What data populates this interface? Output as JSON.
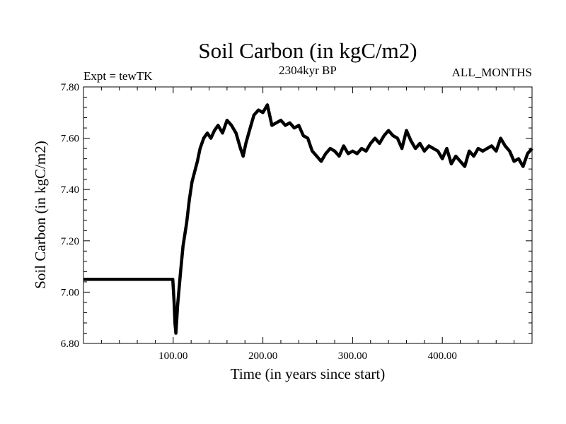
{
  "chart_data": {
    "type": "line",
    "title": "Soil Carbon (in kgC/m2)",
    "subtitle": "2304kyr BP",
    "left_annotation": "Expt = tewTK",
    "right_annotation": "ALL_MONTHS",
    "xlabel": "Time (in years since start)",
    "ylabel": "Soil Carbon (in kgC/m2)",
    "xlim": [
      0,
      500
    ],
    "ylim": [
      6.8,
      7.8
    ],
    "x_ticks": [
      {
        "value": 100,
        "label": "100.00"
      },
      {
        "value": 200,
        "label": "200.00"
      },
      {
        "value": 300,
        "label": "300.00"
      },
      {
        "value": 400,
        "label": "400.00"
      }
    ],
    "y_ticks": [
      {
        "value": 6.8,
        "label": "6.80"
      },
      {
        "value": 7.0,
        "label": "7.00"
      },
      {
        "value": 7.2,
        "label": "7.20"
      },
      {
        "value": 7.4,
        "label": "7.40"
      },
      {
        "value": 7.6,
        "label": "7.60"
      },
      {
        "value": 7.8,
        "label": "7.80"
      }
    ],
    "grid": false,
    "series": [
      {
        "name": "Soil Carbon",
        "color": "#000000",
        "x": [
          0,
          50,
          99.5,
          101,
          102,
          103,
          105,
          108,
          111,
          115,
          118,
          121,
          124,
          127,
          130,
          134,
          138,
          142,
          146,
          150,
          155,
          160,
          165,
          170,
          175,
          178,
          181,
          185,
          190,
          195,
          200,
          205,
          210,
          215,
          220,
          225,
          230,
          235,
          240,
          245,
          250,
          255,
          260,
          265,
          270,
          275,
          280,
          285,
          290,
          295,
          300,
          305,
          310,
          315,
          320,
          325,
          330,
          335,
          340,
          345,
          350,
          355,
          360,
          365,
          370,
          375,
          380,
          385,
          390,
          395,
          400,
          405,
          410,
          415,
          420,
          425,
          430,
          435,
          440,
          445,
          450,
          455,
          460,
          465,
          470,
          475,
          480,
          485,
          490,
          495,
          500
        ],
        "values": [
          7.05,
          7.05,
          7.05,
          6.96,
          6.88,
          6.84,
          6.95,
          7.07,
          7.18,
          7.27,
          7.36,
          7.43,
          7.47,
          7.51,
          7.56,
          7.6,
          7.62,
          7.6,
          7.63,
          7.65,
          7.62,
          7.67,
          7.65,
          7.62,
          7.56,
          7.53,
          7.58,
          7.63,
          7.69,
          7.71,
          7.7,
          7.73,
          7.65,
          7.66,
          7.67,
          7.65,
          7.66,
          7.64,
          7.65,
          7.61,
          7.6,
          7.55,
          7.53,
          7.51,
          7.54,
          7.56,
          7.55,
          7.53,
          7.57,
          7.54,
          7.55,
          7.54,
          7.56,
          7.55,
          7.58,
          7.6,
          7.58,
          7.61,
          7.63,
          7.61,
          7.6,
          7.56,
          7.63,
          7.59,
          7.56,
          7.58,
          7.55,
          7.57,
          7.56,
          7.55,
          7.52,
          7.56,
          7.5,
          7.53,
          7.51,
          7.49,
          7.55,
          7.53,
          7.56,
          7.55,
          7.56,
          7.57,
          7.55,
          7.6,
          7.57,
          7.55,
          7.51,
          7.52,
          7.49,
          7.54,
          7.56
        ]
      }
    ]
  }
}
